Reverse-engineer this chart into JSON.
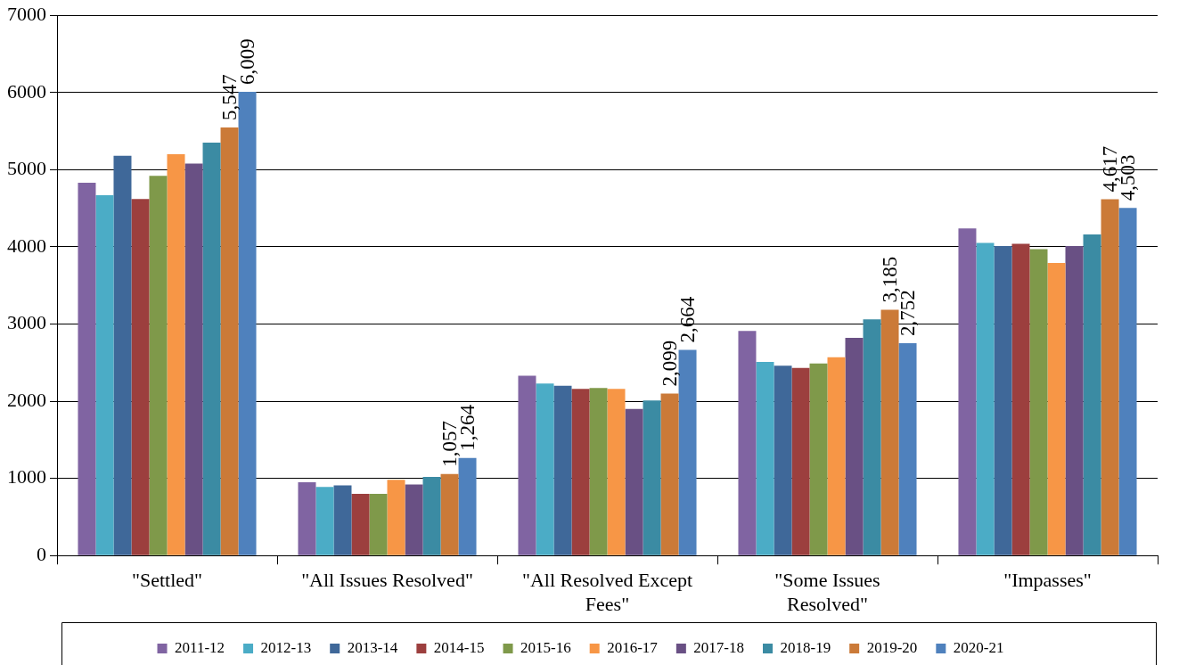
{
  "chart_data": {
    "type": "bar",
    "categories": [
      "\"Settled\"",
      "\"All Issues Resolved\"",
      "\"All Resolved Except Fees\"",
      "\"Some Issues Resolved\"",
      "\"Impasses\""
    ],
    "series": [
      {
        "name": "2011-12",
        "color": "#8064a2",
        "values": [
          4830,
          950,
          2330,
          2910,
          4240
        ]
      },
      {
        "name": "2012-13",
        "color": "#4bacc6",
        "values": [
          4670,
          890,
          2230,
          2510,
          4050
        ]
      },
      {
        "name": "2013-14",
        "color": "#3f6899",
        "values": [
          5180,
          910,
          2200,
          2460,
          4010
        ]
      },
      {
        "name": "2014-15",
        "color": "#9c3f3e",
        "values": [
          4620,
          800,
          2160,
          2430,
          4040
        ]
      },
      {
        "name": "2015-16",
        "color": "#7f994a",
        "values": [
          4920,
          800,
          2170,
          2490,
          3970
        ]
      },
      {
        "name": "2016-17",
        "color": "#f79646",
        "values": [
          5200,
          980,
          2160,
          2570,
          3790
        ]
      },
      {
        "name": "2017-18",
        "color": "#695084",
        "values": [
          5080,
          920,
          1900,
          2820,
          4010
        ]
      },
      {
        "name": "2018-19",
        "color": "#3b8ba3",
        "values": [
          5350,
          1020,
          2010,
          3060,
          4160
        ]
      },
      {
        "name": "2019-20",
        "color": "#cb7a38",
        "values": [
          5547,
          1057,
          2099,
          3185,
          4617
        ],
        "value_labels": [
          "5,547",
          "1,057",
          "2,099",
          "3,185",
          "4,617"
        ]
      },
      {
        "name": "2020-21",
        "color": "#4f81bd",
        "values": [
          6009,
          1264,
          2664,
          2752,
          4503
        ],
        "value_labels": [
          "6,009",
          "1,264",
          "2,664",
          "2,752",
          "4,503"
        ]
      }
    ],
    "ylim": [
      0,
      7000
    ],
    "yticks": [
      0,
      1000,
      2000,
      3000,
      4000,
      5000,
      6000,
      7000
    ],
    "grid": "y",
    "legend": "bottom"
  }
}
